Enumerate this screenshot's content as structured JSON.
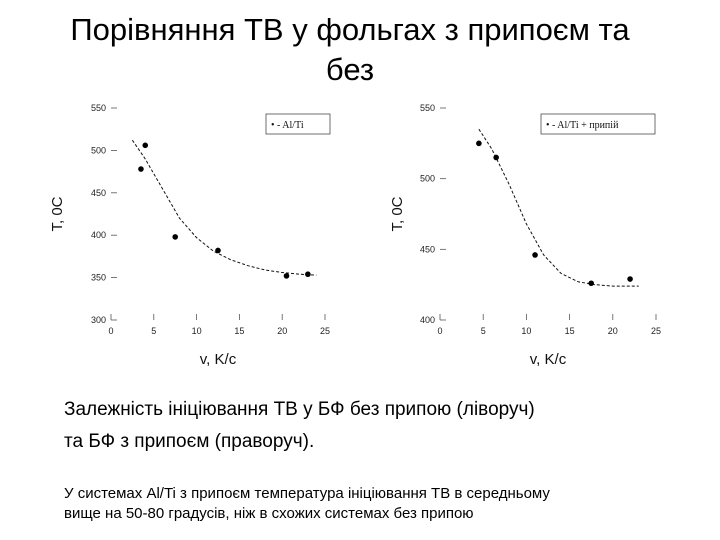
{
  "title": {
    "line1": "Порівняння ТВ у фольгах з припоєм та",
    "line2": "без"
  },
  "chart_data": [
    {
      "type": "scatter",
      "xlabel": "v, K/c",
      "ylabel": "T, 0C",
      "xlim": [
        0,
        25
      ],
      "ylim": [
        300,
        550
      ],
      "xticks": [
        "0",
        "5",
        "10",
        "15",
        "20",
        "25"
      ],
      "yticks": [
        "300",
        "350",
        "400",
        "450",
        "500",
        "550"
      ],
      "legend": "• - Al/Ti",
      "legend_position": "top-right",
      "grid": false,
      "points": [
        {
          "x": 3.5,
          "y": 478
        },
        {
          "x": 4,
          "y": 506
        },
        {
          "x": 7.5,
          "y": 398
        },
        {
          "x": 12.5,
          "y": 382
        },
        {
          "x": 20.5,
          "y": 352
        },
        {
          "x": 23,
          "y": 354
        }
      ],
      "fit_curve": [
        {
          "x": 2.5,
          "y": 512
        },
        {
          "x": 4,
          "y": 490
        },
        {
          "x": 6,
          "y": 455
        },
        {
          "x": 8,
          "y": 420
        },
        {
          "x": 10,
          "y": 397
        },
        {
          "x": 12,
          "y": 381
        },
        {
          "x": 14,
          "y": 371
        },
        {
          "x": 16,
          "y": 364
        },
        {
          "x": 18,
          "y": 359
        },
        {
          "x": 20,
          "y": 356
        },
        {
          "x": 22,
          "y": 354
        },
        {
          "x": 24,
          "y": 353
        }
      ]
    },
    {
      "type": "scatter",
      "xlabel": "v, K/c",
      "ylabel": "T, 0C",
      "xlim": [
        0,
        25
      ],
      "ylim": [
        400,
        550
      ],
      "xticks": [
        "0",
        "5",
        "10",
        "15",
        "20",
        "25"
      ],
      "yticks": [
        "400",
        "450",
        "500",
        "550"
      ],
      "legend": "• - Al/Ti + припій",
      "legend_position": "top-right",
      "grid": false,
      "points": [
        {
          "x": 4.5,
          "y": 525
        },
        {
          "x": 6.5,
          "y": 515
        },
        {
          "x": 11,
          "y": 446
        },
        {
          "x": 17.5,
          "y": 426
        },
        {
          "x": 22,
          "y": 429
        }
      ],
      "fit_curve": [
        {
          "x": 4.5,
          "y": 535
        },
        {
          "x": 6,
          "y": 521
        },
        {
          "x": 8,
          "y": 496
        },
        {
          "x": 10,
          "y": 468
        },
        {
          "x": 12,
          "y": 446
        },
        {
          "x": 14,
          "y": 433
        },
        {
          "x": 16,
          "y": 427
        },
        {
          "x": 18,
          "y": 425
        },
        {
          "x": 20,
          "y": 424
        },
        {
          "x": 23,
          "y": 424
        }
      ]
    }
  ],
  "caption": {
    "line1": "Залежність ініціювання ТВ у БФ без припою (ліворуч)",
    "line2": "та БФ з припоєм (праворуч)."
  },
  "note": {
    "line1": "У системах Al/Ti з припоєм температура ініціювання ТВ в середньому",
    "line2": "вище на 50-80 градусів, ніж в схожих системах без припою"
  }
}
